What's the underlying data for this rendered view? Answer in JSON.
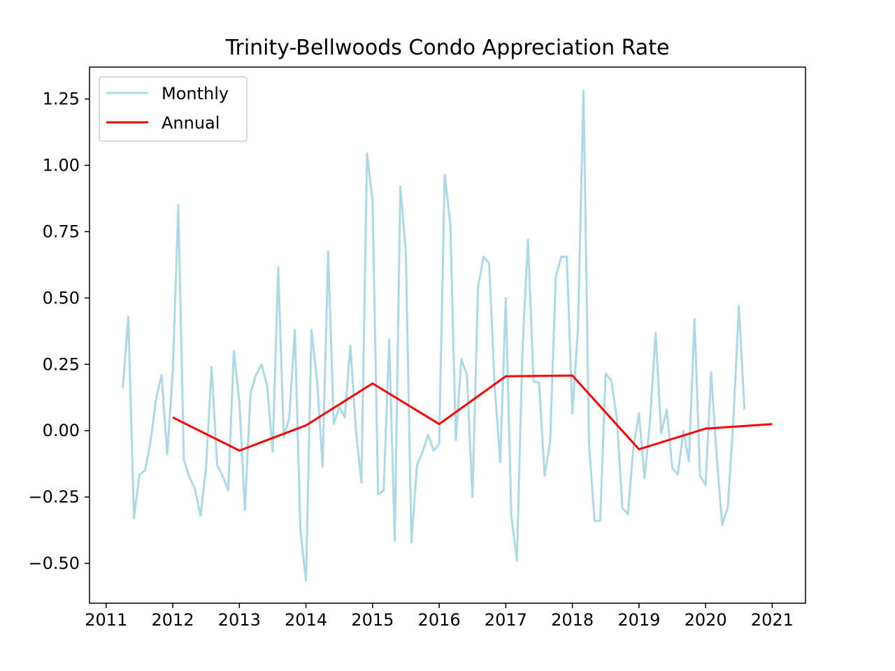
{
  "chart_data": {
    "type": "line",
    "title": "Trinity-Bellwoods Condo Appreciation Rate",
    "xlabel": "",
    "ylabel": "",
    "xlim": [
      2010.75,
      2021.5
    ],
    "ylim": [
      -0.65,
      1.37
    ],
    "x_ticks": [
      2011,
      2012,
      2013,
      2014,
      2015,
      2016,
      2017,
      2018,
      2019,
      2020,
      2021
    ],
    "x_tick_labels": [
      "2011",
      "2012",
      "2013",
      "2014",
      "2015",
      "2016",
      "2017",
      "2018",
      "2019",
      "2020",
      "2021"
    ],
    "y_ticks": [
      -0.5,
      -0.25,
      0,
      0.25,
      0.5,
      0.75,
      1.0,
      1.25
    ],
    "y_tick_labels": [
      "−0.50",
      "−0.25",
      "0.00",
      "0.25",
      "0.50",
      "0.75",
      "1.00",
      "1.25"
    ],
    "grid": false,
    "legend_position": "top-left",
    "series": [
      {
        "name": "Monthly",
        "color": "#add8e6",
        "x": [
          2011.25,
          2011.333,
          2011.417,
          2011.5,
          2011.583,
          2011.667,
          2011.75,
          2011.833,
          2011.917,
          2012.0,
          2012.083,
          2012.167,
          2012.25,
          2012.333,
          2012.417,
          2012.5,
          2012.583,
          2012.667,
          2012.75,
          2012.833,
          2012.917,
          2013.0,
          2013.083,
          2013.167,
          2013.25,
          2013.333,
          2013.417,
          2013.5,
          2013.583,
          2013.667,
          2013.75,
          2013.833,
          2013.917,
          2014.0,
          2014.083,
          2014.167,
          2014.25,
          2014.333,
          2014.417,
          2014.5,
          2014.583,
          2014.667,
          2014.75,
          2014.833,
          2014.917,
          2015.0,
          2015.083,
          2015.167,
          2015.25,
          2015.333,
          2015.417,
          2015.5,
          2015.583,
          2015.667,
          2015.75,
          2015.833,
          2015.917,
          2016.0,
          2016.083,
          2016.167,
          2016.25,
          2016.333,
          2016.417,
          2016.5,
          2016.583,
          2016.667,
          2016.75,
          2016.833,
          2016.917,
          2017.0,
          2017.083,
          2017.167,
          2017.25,
          2017.333,
          2017.417,
          2017.5,
          2017.583,
          2017.667,
          2017.75,
          2017.833,
          2017.917,
          2018.0,
          2018.083,
          2018.167,
          2018.25,
          2018.333,
          2018.417,
          2018.5,
          2018.583,
          2018.667,
          2018.75,
          2018.833,
          2018.917,
          2019.0,
          2019.083,
          2019.167,
          2019.25,
          2019.333,
          2019.417,
          2019.5,
          2019.583,
          2019.667,
          2019.75,
          2019.833,
          2019.917,
          2020.0,
          2020.083,
          2020.167,
          2020.25,
          2020.333,
          2020.417,
          2020.5,
          2020.583
        ],
        "values": [
          0.16,
          0.43,
          -0.33,
          -0.165,
          -0.15,
          -0.04,
          0.12,
          0.21,
          -0.09,
          0.22,
          0.85,
          -0.11,
          -0.175,
          -0.22,
          -0.32,
          -0.14,
          0.24,
          -0.13,
          -0.17,
          -0.225,
          0.3,
          0.11,
          -0.3,
          0.14,
          0.21,
          0.25,
          0.17,
          -0.08,
          0.615,
          -0.025,
          0.05,
          0.38,
          -0.375,
          -0.565,
          0.38,
          0.19,
          -0.135,
          0.675,
          0.025,
          0.09,
          0.05,
          0.32,
          0.0,
          -0.195,
          1.045,
          0.865,
          -0.24,
          -0.225,
          0.345,
          -0.415,
          0.92,
          0.67,
          -0.42,
          -0.13,
          -0.08,
          -0.015,
          -0.075,
          -0.05,
          0.965,
          0.78,
          -0.035,
          0.27,
          0.21,
          -0.25,
          0.54,
          0.655,
          0.63,
          0.17,
          -0.12,
          0.5,
          -0.32,
          -0.49,
          0.3,
          0.72,
          0.185,
          0.18,
          -0.17,
          -0.04,
          0.58,
          0.655,
          0.655,
          0.065,
          0.38,
          1.28,
          -0.05,
          -0.34,
          -0.34,
          0.215,
          0.19,
          0.05,
          -0.29,
          -0.315,
          -0.06,
          0.065,
          -0.18,
          0.04,
          0.37,
          -0.01,
          0.08,
          -0.14,
          -0.165,
          0.0,
          -0.115,
          0.42,
          -0.17,
          -0.205,
          0.22,
          -0.1,
          -0.355,
          -0.29,
          0.04,
          0.47,
          0.08
        ]
      },
      {
        "name": "Annual",
        "color": "#ff0000",
        "x": [
          2012,
          2013,
          2014,
          2015,
          2016,
          2017,
          2018,
          2019,
          2020,
          2021
        ],
        "values": [
          0.05,
          -0.075,
          0.02,
          0.178,
          0.025,
          0.205,
          0.208,
          -0.07,
          0.008,
          0.025
        ]
      }
    ]
  }
}
